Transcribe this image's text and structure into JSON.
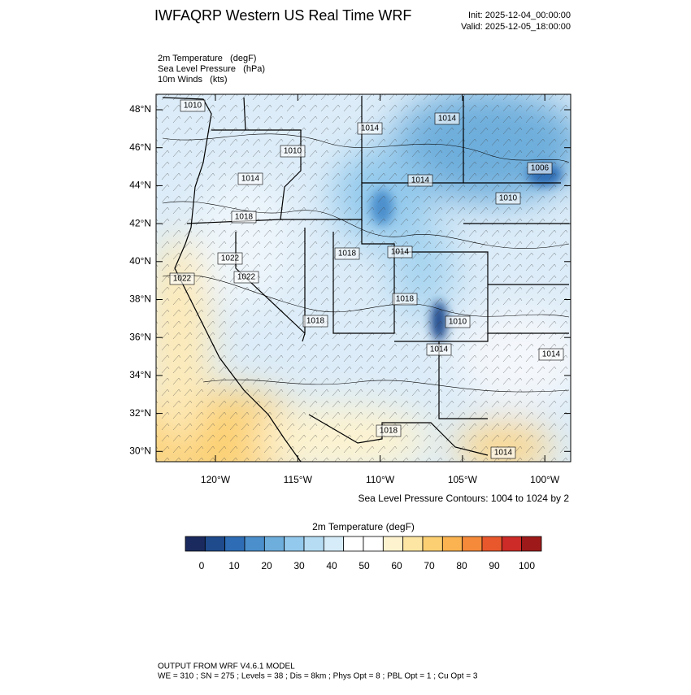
{
  "header": {
    "title": "IWFAQRP Western US Real Time WRF",
    "init": "Init: 2025-12-04_00:00:00",
    "valid": "Valid: 2025-12-05_18:00:00"
  },
  "fields": [
    "2m Temperature   (degF)",
    "Sea Level Pressure   (hPa)",
    "10m Winds   (kts)"
  ],
  "map": {
    "lat_labels": [
      "48°N",
      "46°N",
      "44°N",
      "42°N",
      "40°N",
      "38°N",
      "36°N",
      "34°N",
      "32°N",
      "30°N"
    ],
    "lon_labels": [
      "120°W",
      "115°W",
      "110°W",
      "105°W",
      "100°W"
    ],
    "contour_labels": [
      "1010",
      "1014",
      "1014",
      "1010",
      "1014",
      "1014",
      "1006",
      "1010",
      "1018",
      "1018",
      "1014",
      "1022",
      "1022",
      "1022",
      "1018",
      "1018",
      "1010",
      "1014",
      "1014",
      "1018",
      "1014"
    ],
    "contour_note": "Sea Level Pressure Contours: 1004 to 1024 by 2"
  },
  "colorbar": {
    "title": "2m Temperature  (degF)",
    "colors": [
      "#1b2a5e",
      "#1f4a8c",
      "#2e6db5",
      "#4b8fcc",
      "#6eaedc",
      "#93c9ec",
      "#b5dcf3",
      "#d6ecf8",
      "#ffffff",
      "#ffffff",
      "#fdf3cf",
      "#fde6a3",
      "#fcd072",
      "#fab350",
      "#f58a3b",
      "#e9582d",
      "#cc2b27",
      "#9e1a1a"
    ],
    "labels": [
      0,
      10,
      20,
      30,
      40,
      50,
      60,
      70,
      80,
      90,
      100
    ]
  },
  "footer": {
    "line1": "OUTPUT FROM WRF V4.6.1 MODEL",
    "line2": "WE = 310 ; SN = 275 ; Levels = 38 ; Dis = 8km ; Phys Opt = 8 ; PBL Opt = 1 ; Cu Opt = 3"
  }
}
